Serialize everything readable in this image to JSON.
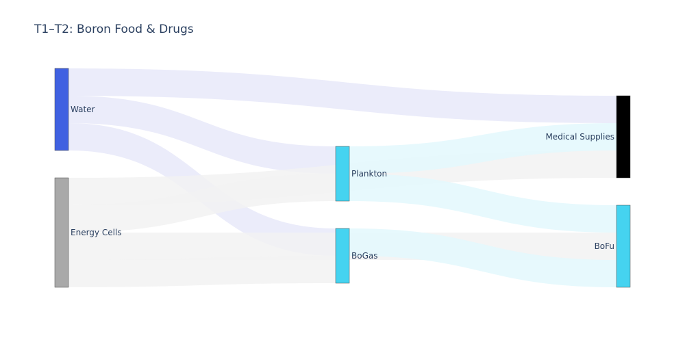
{
  "chart_data": {
    "type": "sankey",
    "title": "T1–T2: Boron Food & Drugs",
    "nodes": [
      {
        "id": "water",
        "label": "Water",
        "color": "#4061e1"
      },
      {
        "id": "energy_cells",
        "label": "Energy Cells",
        "color": "#a9a9a9"
      },
      {
        "id": "plankton",
        "label": "Plankton",
        "color": "#45d3f0"
      },
      {
        "id": "bogas",
        "label": "BoGas",
        "color": "#45d3f0"
      },
      {
        "id": "medical_supplies",
        "label": "Medical Supplies",
        "color": "#000000"
      },
      {
        "id": "bofu",
        "label": "BoFu",
        "color": "#45d3f0"
      }
    ],
    "links": [
      {
        "source": "water",
        "target": "medical_supplies",
        "value": 40,
        "color": "#e7e9f9"
      },
      {
        "source": "water",
        "target": "plankton",
        "value": 40,
        "color": "#e7e9f9"
      },
      {
        "source": "water",
        "target": "bogas",
        "value": 40,
        "color": "#e7e9f9"
      },
      {
        "source": "energy_cells",
        "target": "medical_supplies",
        "value": 40,
        "color": "#f2f2f2"
      },
      {
        "source": "energy_cells",
        "target": "plankton",
        "value": 40,
        "color": "#f2f2f2"
      },
      {
        "source": "energy_cells",
        "target": "bofu",
        "value": 40,
        "color": "#f2f2f2"
      },
      {
        "source": "energy_cells",
        "target": "bogas",
        "value": 40,
        "color": "#f2f2f2"
      },
      {
        "source": "plankton",
        "target": "medical_supplies",
        "value": 40,
        "color": "#e3f8fd"
      },
      {
        "source": "plankton",
        "target": "bofu",
        "value": 40,
        "color": "#e3f8fd"
      },
      {
        "source": "bogas",
        "target": "bofu",
        "value": 40,
        "color": "#e3f8fd"
      }
    ]
  }
}
